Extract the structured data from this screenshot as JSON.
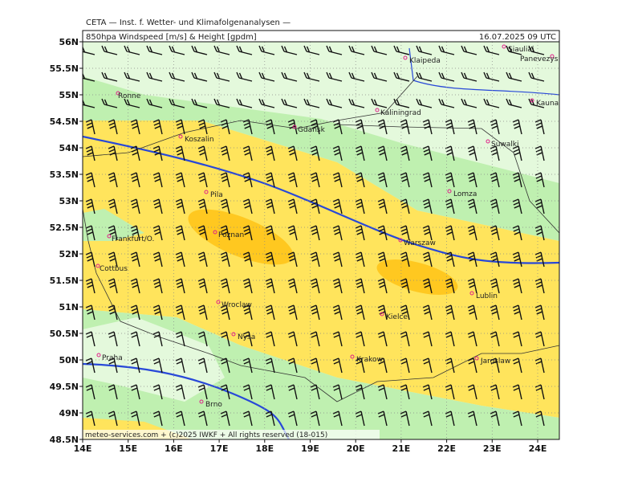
{
  "header": {
    "title": "CETA — Inst. f. Wetter- und Klimafolgenanalysen —",
    "left": "850hpa Windspeed [m/s] & Height [gpdm]",
    "right": "16.07.2025 09 UTC"
  },
  "axes": {
    "lat_labels": [
      "56N",
      "55.5N",
      "55N",
      "54.5N",
      "54N",
      "53.5N",
      "53N",
      "52.5N",
      "52N",
      "51.5N",
      "51N",
      "50.5N",
      "50N",
      "49.5N",
      "49N",
      "48.5N"
    ],
    "lon_labels": [
      "14E",
      "15E",
      "16E",
      "17E",
      "18E",
      "19E",
      "20E",
      "21E",
      "22E",
      "23E",
      "24E"
    ]
  },
  "cities": [
    "Klaipeda",
    "Siauliai",
    "Panevezys",
    "Ronne",
    "Kaunas",
    "Kaliningrad",
    "Gdansk",
    "Koszalin",
    "Suwalki",
    "Lomza",
    "Pila",
    "Poznan",
    "Frankfurt/O.",
    "Warszaw",
    "Cottbus",
    "Lublin",
    "Wroclaw",
    "Kielce",
    "Nysa",
    "Praha",
    "Krakow",
    "Jaroslaw",
    "Brno"
  ],
  "footer": "meteo-services.com + (c)2025 IWKF + All rights reserved (18-015)"
}
